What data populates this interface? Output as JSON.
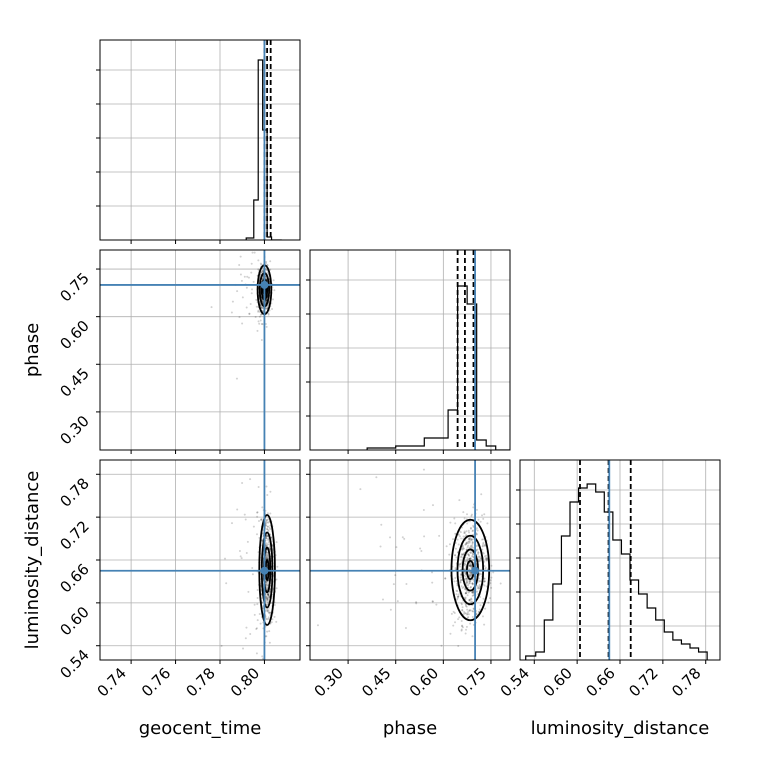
{
  "colors": {
    "truth": "#4682b4",
    "contour": "#000000",
    "grid": "#b0b0b0",
    "background": "#ffffff"
  },
  "chart_data": {
    "type": "corner",
    "parameters": [
      "geocent_time",
      "phase",
      "luminosity_distance"
    ],
    "truths": {
      "geocent_time": 0.8,
      "phase": 0.7,
      "luminosity_distance": 0.645
    },
    "axes": {
      "geocent_time": {
        "range": [
          0.726,
          0.816
        ],
        "ticks": [
          "0.74",
          "0.76",
          "0.78",
          "0.80"
        ],
        "tick_values": [
          0.74,
          0.76,
          0.78,
          0.8
        ],
        "label": "geocent_time"
      },
      "phase": {
        "range": [
          0.18,
          0.81
        ],
        "ticks": [
          "0.30",
          "0.45",
          "0.60",
          "0.75"
        ],
        "tick_values": [
          0.3,
          0.45,
          0.6,
          0.75
        ],
        "label": "phase"
      },
      "luminosity_distance": {
        "range": [
          0.52,
          0.8
        ],
        "ticks": [
          "0.54",
          "0.60",
          "0.66",
          "0.72",
          "0.78"
        ],
        "tick_values": [
          0.54,
          0.6,
          0.66,
          0.72,
          0.78
        ],
        "label": "luminosity_distance"
      }
    },
    "grid": true,
    "histograms": [
      {
        "parameter": "geocent_time",
        "bin_edges": [
          0.7918,
          0.7952,
          0.7972,
          0.7992,
          0.8012,
          0.8032,
          0.8052,
          0.8078
        ],
        "values": [
          0.01,
          0.2,
          0.9,
          0.55,
          0.015,
          0.0,
          0.0
        ],
        "quantiles": [
          0.8,
          0.8012,
          0.8028
        ],
        "ylim": [
          0,
          1
        ]
      },
      {
        "parameter": "phase",
        "bin_edges": [
          0.36,
          0.45,
          0.54,
          0.615,
          0.645,
          0.675,
          0.705,
          0.735,
          0.765,
          0.81
        ],
        "values": [
          0.01,
          0.02,
          0.06,
          0.2,
          0.82,
          0.73,
          0.05,
          0.02,
          0.0
        ],
        "quantiles": [
          0.645,
          0.668,
          0.695
        ],
        "ylim": [
          0,
          1
        ]
      },
      {
        "parameter": "luminosity_distance",
        "bin_edges": [
          0.528,
          0.542,
          0.554,
          0.566,
          0.578,
          0.59,
          0.602,
          0.614,
          0.626,
          0.638,
          0.65,
          0.662,
          0.674,
          0.686,
          0.698,
          0.71,
          0.722,
          0.734,
          0.746,
          0.758,
          0.77,
          0.782
        ],
        "values": [
          0.02,
          0.04,
          0.2,
          0.38,
          0.62,
          0.79,
          0.86,
          0.88,
          0.84,
          0.74,
          0.6,
          0.53,
          0.4,
          0.33,
          0.26,
          0.2,
          0.14,
          0.1,
          0.08,
          0.06,
          0.04
        ],
        "quantiles": [
          0.604,
          0.644,
          0.675
        ],
        "ylim": [
          0,
          1
        ]
      }
    ],
    "contours_2d": [
      {
        "x": "geocent_time",
        "y": "phase",
        "center": [
          0.8,
          0.685
        ],
        "widths": [
          0.0014,
          0.035
        ]
      },
      {
        "x": "geocent_time",
        "y": "luminosity_distance",
        "center": [
          0.8012,
          0.646
        ],
        "widths": [
          0.0016,
          0.035
        ]
      },
      {
        "x": "phase",
        "y": "luminosity_distance",
        "center": [
          0.685,
          0.646
        ],
        "widths": [
          0.027,
          0.032
        ]
      }
    ]
  }
}
